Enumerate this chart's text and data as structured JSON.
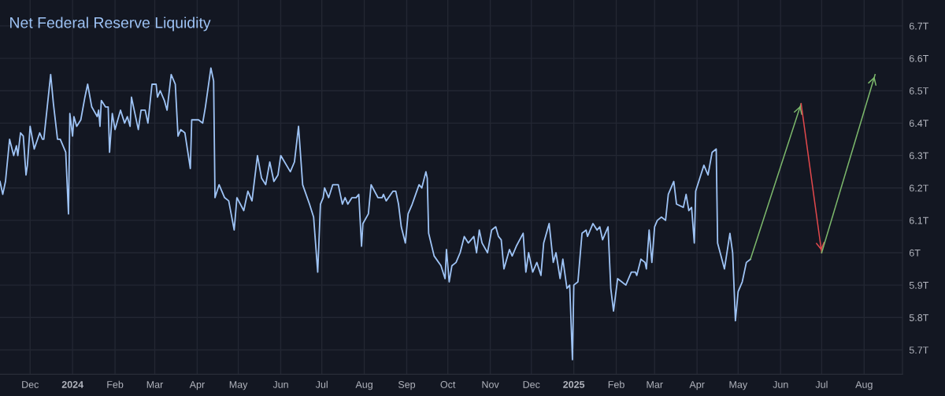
{
  "chart_data": {
    "type": "line",
    "title": "Net Federal Reserve Liquidity",
    "xlim": [
      "2023-11-09",
      "2025-08-29"
    ],
    "ylim": [
      5.625,
      6.78
    ],
    "xticks": [
      {
        "value": "2023-12-01",
        "label": "Dec"
      },
      {
        "value": "2024-01-01",
        "label": "2024"
      },
      {
        "value": "2024-02-01",
        "label": "Feb"
      },
      {
        "value": "2024-03-01",
        "label": "Mar"
      },
      {
        "value": "2024-04-01",
        "label": "Apr"
      },
      {
        "value": "2024-05-01",
        "label": "May"
      },
      {
        "value": "2024-06-01",
        "label": "Jun"
      },
      {
        "value": "2024-07-01",
        "label": "Jul"
      },
      {
        "value": "2024-08-01",
        "label": "Aug"
      },
      {
        "value": "2024-09-01",
        "label": "Sep"
      },
      {
        "value": "2024-10-01",
        "label": "Oct"
      },
      {
        "value": "2024-11-01",
        "label": "Nov"
      },
      {
        "value": "2024-12-01",
        "label": "Dec"
      },
      {
        "value": "2025-01-01",
        "label": "2025"
      },
      {
        "value": "2025-02-01",
        "label": "Feb"
      },
      {
        "value": "2025-03-01",
        "label": "Mar"
      },
      {
        "value": "2025-04-01",
        "label": "Apr"
      },
      {
        "value": "2025-05-01",
        "label": "May"
      },
      {
        "value": "2025-06-01",
        "label": "Jun"
      },
      {
        "value": "2025-07-01",
        "label": "Jul"
      },
      {
        "value": "2025-08-01",
        "label": "Aug"
      }
    ],
    "yticks": [
      {
        "value": 5.7,
        "label": "5.7T"
      },
      {
        "value": 5.8,
        "label": "5.8T"
      },
      {
        "value": 5.9,
        "label": "5.9T"
      },
      {
        "value": 6.0,
        "label": "6T"
      },
      {
        "value": 6.1,
        "label": "6.1T"
      },
      {
        "value": 6.2,
        "label": "6.2T"
      },
      {
        "value": 6.3,
        "label": "6.3T"
      },
      {
        "value": 6.4,
        "label": "6.4T"
      },
      {
        "value": 6.5,
        "label": "6.5T"
      },
      {
        "value": 6.6,
        "label": "6.6T"
      },
      {
        "value": 6.7,
        "label": "6.7T"
      }
    ],
    "grid": true,
    "legend": false,
    "series": [
      {
        "color": "#9ec3f5",
        "x": [
          "2023-11-09",
          "2023-11-11",
          "2023-11-13",
          "2023-11-16",
          "2023-11-19",
          "2023-11-21",
          "2023-11-22",
          "2023-11-24",
          "2023-11-26",
          "2023-11-28",
          "2023-11-29",
          "2023-12-01",
          "2023-12-04",
          "2023-12-08",
          "2023-12-10",
          "2023-12-11",
          "2023-12-16",
          "2023-12-18",
          "2023-12-21",
          "2023-12-23",
          "2023-12-27",
          "2023-12-29",
          "2023-12-30",
          "2024-01-01",
          "2024-01-02",
          "2024-01-04",
          "2024-01-07",
          "2024-01-10",
          "2024-01-12",
          "2024-01-15",
          "2024-01-19",
          "2024-01-20",
          "2024-01-21",
          "2024-01-22",
          "2024-01-25",
          "2024-01-27",
          "2024-01-28",
          "2024-01-30",
          "2024-02-01",
          "2024-02-05",
          "2024-02-08",
          "2024-02-10",
          "2024-02-12",
          "2024-02-13",
          "2024-02-15",
          "2024-02-18",
          "2024-02-20",
          "2024-02-23",
          "2024-02-25",
          "2024-02-28",
          "2024-03-02",
          "2024-03-03",
          "2024-03-05",
          "2024-03-08",
          "2024-03-10",
          "2024-03-13",
          "2024-03-16",
          "2024-03-18",
          "2024-03-20",
          "2024-03-23",
          "2024-03-27",
          "2024-03-28",
          "2024-04-02",
          "2024-04-05",
          "2024-04-07",
          "2024-04-11",
          "2024-04-13",
          "2024-04-14",
          "2024-04-17",
          "2024-04-21",
          "2024-04-24",
          "2024-04-28",
          "2024-04-30",
          "2024-05-05",
          "2024-05-08",
          "2024-05-11",
          "2024-05-15",
          "2024-05-18",
          "2024-05-21",
          "2024-05-24",
          "2024-05-27",
          "2024-05-30",
          "2024-06-01",
          "2024-06-08",
          "2024-06-11",
          "2024-06-14",
          "2024-06-17",
          "2024-06-22",
          "2024-06-25",
          "2024-06-28",
          "2024-06-30",
          "2024-07-02",
          "2024-07-03",
          "2024-07-06",
          "2024-07-09",
          "2024-07-13",
          "2024-07-16",
          "2024-07-18",
          "2024-07-20",
          "2024-07-23",
          "2024-07-26",
          "2024-07-28",
          "2024-07-30",
          "2024-07-31",
          "2024-08-04",
          "2024-08-06",
          "2024-08-11",
          "2024-08-14",
          "2024-08-15",
          "2024-08-17",
          "2024-08-22",
          "2024-08-24",
          "2024-08-26",
          "2024-08-28",
          "2024-08-31",
          "2024-09-02",
          "2024-09-05",
          "2024-09-10",
          "2024-09-12",
          "2024-09-15",
          "2024-09-16",
          "2024-09-17",
          "2024-09-21",
          "2024-09-26",
          "2024-09-29",
          "2024-09-30",
          "2024-10-02",
          "2024-10-04",
          "2024-10-07",
          "2024-10-10",
          "2024-10-13",
          "2024-10-16",
          "2024-10-20",
          "2024-10-22",
          "2024-10-24",
          "2024-10-26",
          "2024-10-30",
          "2024-11-02",
          "2024-11-05",
          "2024-11-07",
          "2024-11-09",
          "2024-11-11",
          "2024-11-15",
          "2024-11-17",
          "2024-11-20",
          "2024-11-25",
          "2024-11-27",
          "2024-11-29",
          "2024-12-02",
          "2024-12-05",
          "2024-12-08",
          "2024-12-10",
          "2024-12-14",
          "2024-12-17",
          "2024-12-19",
          "2024-12-22",
          "2024-12-24",
          "2024-12-27",
          "2024-12-29",
          "2024-12-31",
          "2025-01-01",
          "2025-01-04",
          "2025-01-07",
          "2025-01-10",
          "2025-01-11",
          "2025-01-15",
          "2025-01-18",
          "2025-01-20",
          "2025-01-22",
          "2025-01-26",
          "2025-01-28",
          "2025-01-30",
          "2025-02-02",
          "2025-02-05",
          "2025-02-08",
          "2025-02-12",
          "2025-02-15",
          "2025-02-16",
          "2025-02-19",
          "2025-02-22",
          "2025-02-23",
          "2025-02-25",
          "2025-02-27",
          "2025-03-01",
          "2025-03-03",
          "2025-03-06",
          "2025-03-09",
          "2025-03-11",
          "2025-03-13",
          "2025-03-15",
          "2025-03-17",
          "2025-03-22",
          "2025-03-24",
          "2025-03-26",
          "2025-03-28",
          "2025-03-30",
          "2025-03-31",
          "2025-04-03",
          "2025-04-06",
          "2025-04-09",
          "2025-04-12",
          "2025-04-15",
          "2025-04-16",
          "2025-04-21",
          "2025-04-25",
          "2025-04-27",
          "2025-04-29",
          "2025-05-01",
          "2025-05-04",
          "2025-05-07",
          "2025-05-10"
        ],
        "values": [
          6.22,
          6.18,
          6.22,
          6.35,
          6.3,
          6.33,
          6.3,
          6.37,
          6.36,
          6.24,
          6.27,
          6.39,
          6.32,
          6.37,
          6.35,
          6.35,
          6.55,
          6.46,
          6.35,
          6.35,
          6.31,
          6.12,
          6.43,
          6.36,
          6.42,
          6.39,
          6.41,
          6.48,
          6.52,
          6.45,
          6.42,
          6.44,
          6.39,
          6.47,
          6.45,
          6.45,
          6.31,
          6.43,
          6.38,
          6.44,
          6.4,
          6.42,
          6.39,
          6.48,
          6.44,
          6.38,
          6.44,
          6.44,
          6.4,
          6.52,
          6.52,
          6.48,
          6.5,
          6.47,
          6.44,
          6.55,
          6.52,
          6.36,
          6.38,
          6.37,
          6.26,
          6.41,
          6.41,
          6.4,
          6.45,
          6.57,
          6.53,
          6.17,
          6.21,
          6.17,
          6.16,
          6.07,
          6.17,
          6.13,
          6.19,
          6.16,
          6.3,
          6.23,
          6.21,
          6.28,
          6.22,
          6.24,
          6.3,
          6.25,
          6.28,
          6.39,
          6.21,
          6.15,
          6.11,
          5.94,
          6.15,
          6.17,
          6.2,
          6.17,
          6.21,
          6.21,
          6.15,
          6.17,
          6.15,
          6.17,
          6.17,
          6.18,
          6.02,
          6.09,
          6.12,
          6.21,
          6.17,
          6.17,
          6.18,
          6.16,
          6.19,
          6.19,
          6.15,
          6.08,
          6.03,
          6.12,
          6.15,
          6.21,
          6.2,
          6.25,
          6.23,
          6.06,
          5.99,
          5.96,
          5.92,
          6.01,
          5.91,
          5.96,
          5.97,
          6.0,
          6.05,
          6.03,
          6.05,
          6.0,
          6.07,
          6.03,
          6.0,
          6.07,
          6.08,
          6.05,
          6.04,
          5.95,
          6.01,
          5.99,
          6.02,
          6.06,
          5.94,
          6.0,
          5.94,
          5.97,
          5.93,
          6.03,
          6.09,
          5.97,
          6.0,
          5.92,
          5.98,
          5.89,
          5.9,
          5.67,
          5.9,
          5.91,
          6.06,
          6.07,
          6.05,
          6.09,
          6.07,
          6.08,
          6.04,
          6.08,
          5.89,
          5.82,
          5.92,
          5.91,
          5.9,
          5.94,
          5.94,
          5.93,
          5.98,
          5.97,
          5.95,
          6.07,
          5.97,
          6.08,
          6.1,
          6.11,
          6.1,
          6.18,
          6.2,
          6.22,
          6.15,
          6.14,
          6.18,
          6.13,
          6.14,
          6.03,
          6.19,
          6.23,
          6.27,
          6.24,
          6.31,
          6.32,
          6.03,
          5.95,
          6.06,
          6.0,
          5.79,
          5.88,
          5.91,
          5.97,
          5.98
        ]
      },
      {
        "color": "#7cb86c",
        "x": [
          "2025-05-10",
          "2025-06-16"
        ],
        "values": [
          5.98,
          6.46
        ]
      },
      {
        "color": "#e0484c",
        "x": [
          "2025-06-16",
          "2025-07-01"
        ],
        "values": [
          6.46,
          6.0
        ]
      },
      {
        "color": "#7cb86c",
        "x": [
          "2025-07-01",
          "2025-08-09"
        ],
        "values": [
          6.0,
          6.55
        ]
      }
    ]
  }
}
